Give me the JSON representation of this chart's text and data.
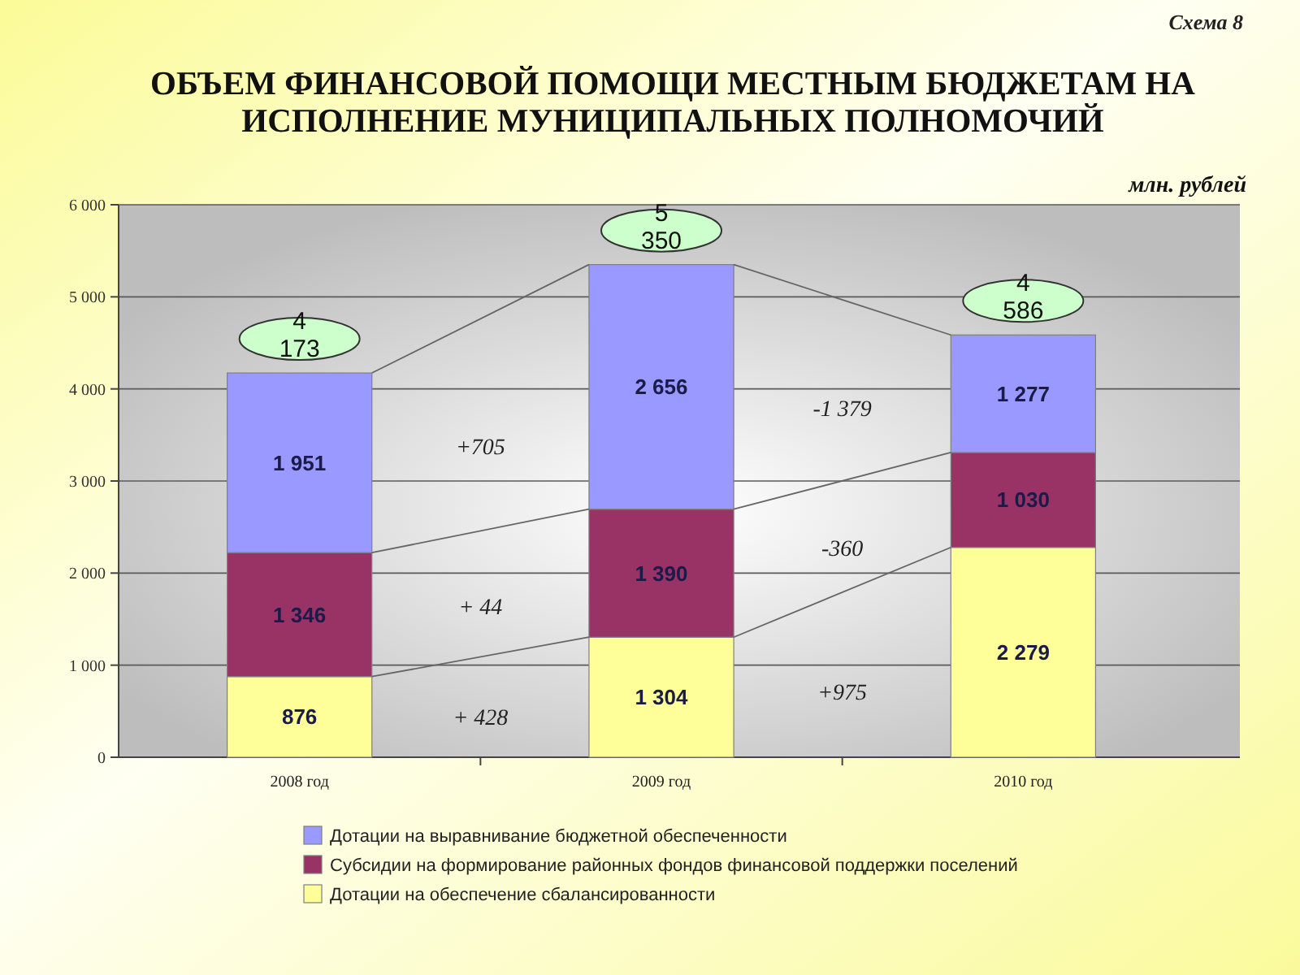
{
  "chart_data": {
    "type": "bar",
    "stacked": true,
    "title": "ОБЪЕМ ФИНАНСОВОЙ ПОМОЩИ МЕСТНЫМ БЮДЖЕТАМ НА ИСПОЛНЕНИЕ МУНИЦИПАЛЬНЫХ ПОЛНОМОЧИЙ",
    "ylabel": "млн. рублей",
    "categories": [
      "2008 год",
      "2009 год",
      "2010 год"
    ],
    "series": [
      {
        "name": "Дотации на обеспечение сбалансированности",
        "color": "#ffff99",
        "values": [
          876,
          1304,
          2279
        ],
        "value_labels": [
          "876",
          "1 304",
          "2 279"
        ]
      },
      {
        "name": "Субсидии на формирование районных фондов финансовой поддержки поселений",
        "color": "#993366",
        "values": [
          1346,
          1390,
          1030
        ],
        "value_labels": [
          "1 346",
          "1 390",
          "1 030"
        ]
      },
      {
        "name": "Дотации на выравнивание бюджетной обеспеченности",
        "color": "#9999ff",
        "values": [
          1951,
          2656,
          1277
        ],
        "value_labels": [
          "1 951",
          "2 656",
          "1 277"
        ]
      }
    ],
    "totals": [
      "4 173",
      "5 350",
      "4 586"
    ],
    "ylim": [
      0,
      6000
    ],
    "yticks": [
      0,
      {
        "value": 1000,
        "label": "1 000"
      },
      {
        "value": 2000,
        "label": "2 000"
      },
      {
        "value": 3000,
        "label": "3 000"
      },
      {
        "value": 4000,
        "label": "4 000"
      },
      {
        "value": 5000,
        "label": "5 000"
      },
      {
        "value": 6000,
        "label": "6 000"
      }
    ],
    "grid": "y",
    "legend": "bottom",
    "annotations": [
      "+705",
      "+ 44",
      "+ 428",
      "-1 379",
      "-360",
      "+975",
      "Схема 8"
    ]
  }
}
